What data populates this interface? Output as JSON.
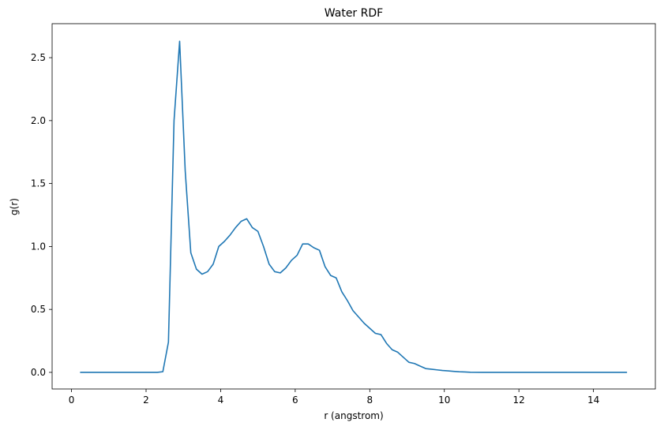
{
  "chart_data": {
    "type": "line",
    "title": "Water RDF",
    "xlabel": "r (angstrom)",
    "ylabel": "g(r)",
    "xlim": [
      -0.52,
      15.66
    ],
    "ylim": [
      -0.132,
      2.77
    ],
    "xticks": [
      0,
      2,
      4,
      6,
      8,
      10,
      12,
      14
    ],
    "yticks": [
      0.0,
      0.5,
      1.0,
      1.5,
      2.0,
      2.5
    ],
    "ytick_labels": [
      "0.0",
      "0.5",
      "1.0",
      "1.5",
      "2.0",
      "2.5"
    ],
    "grid": false,
    "legend": null,
    "series": [
      {
        "color": "#1f77b4",
        "x": [
          0.23,
          0.4,
          0.6,
          0.8,
          1.0,
          1.2,
          1.4,
          1.6,
          1.8,
          2.0,
          2.2,
          2.3,
          2.45,
          2.6,
          2.75,
          2.9,
          3.05,
          3.2,
          3.35,
          3.5,
          3.65,
          3.8,
          3.95,
          4.1,
          4.25,
          4.4,
          4.55,
          4.7,
          4.85,
          5.0,
          5.15,
          5.3,
          5.45,
          5.6,
          5.75,
          5.9,
          6.05,
          6.2,
          6.35,
          6.5,
          6.65,
          6.8,
          6.95,
          7.1,
          7.25,
          7.4,
          7.55,
          7.7,
          7.85,
          8.0,
          8.15,
          8.3,
          8.45,
          8.6,
          8.75,
          8.9,
          9.05,
          9.2,
          9.35,
          9.5,
          9.65,
          9.8,
          9.95,
          10.1,
          10.25,
          10.4,
          10.55,
          10.7,
          11.0,
          11.5,
          12.0,
          12.5,
          13.0,
          13.5,
          14.0,
          14.5,
          14.9
        ],
        "y": [
          0.0,
          0.0,
          0.0,
          0.0,
          0.0,
          0.0,
          0.0,
          0.0,
          0.0,
          0.0,
          0.0,
          0.0,
          0.005,
          0.24,
          2.0,
          2.63,
          1.6,
          0.95,
          0.82,
          0.78,
          0.8,
          0.86,
          1.0,
          1.04,
          1.09,
          1.15,
          1.2,
          1.22,
          1.15,
          1.12,
          1.0,
          0.86,
          0.8,
          0.79,
          0.83,
          0.89,
          0.93,
          1.02,
          1.02,
          0.99,
          0.97,
          0.84,
          0.77,
          0.75,
          0.64,
          0.57,
          0.49,
          0.44,
          0.39,
          0.35,
          0.31,
          0.3,
          0.23,
          0.18,
          0.16,
          0.12,
          0.08,
          0.07,
          0.05,
          0.03,
          0.025,
          0.02,
          0.015,
          0.012,
          0.008,
          0.005,
          0.003,
          0.001,
          0.0,
          0.0,
          0.0,
          0.0,
          0.0,
          0.0,
          0.0,
          0.0,
          0.0
        ]
      }
    ]
  }
}
